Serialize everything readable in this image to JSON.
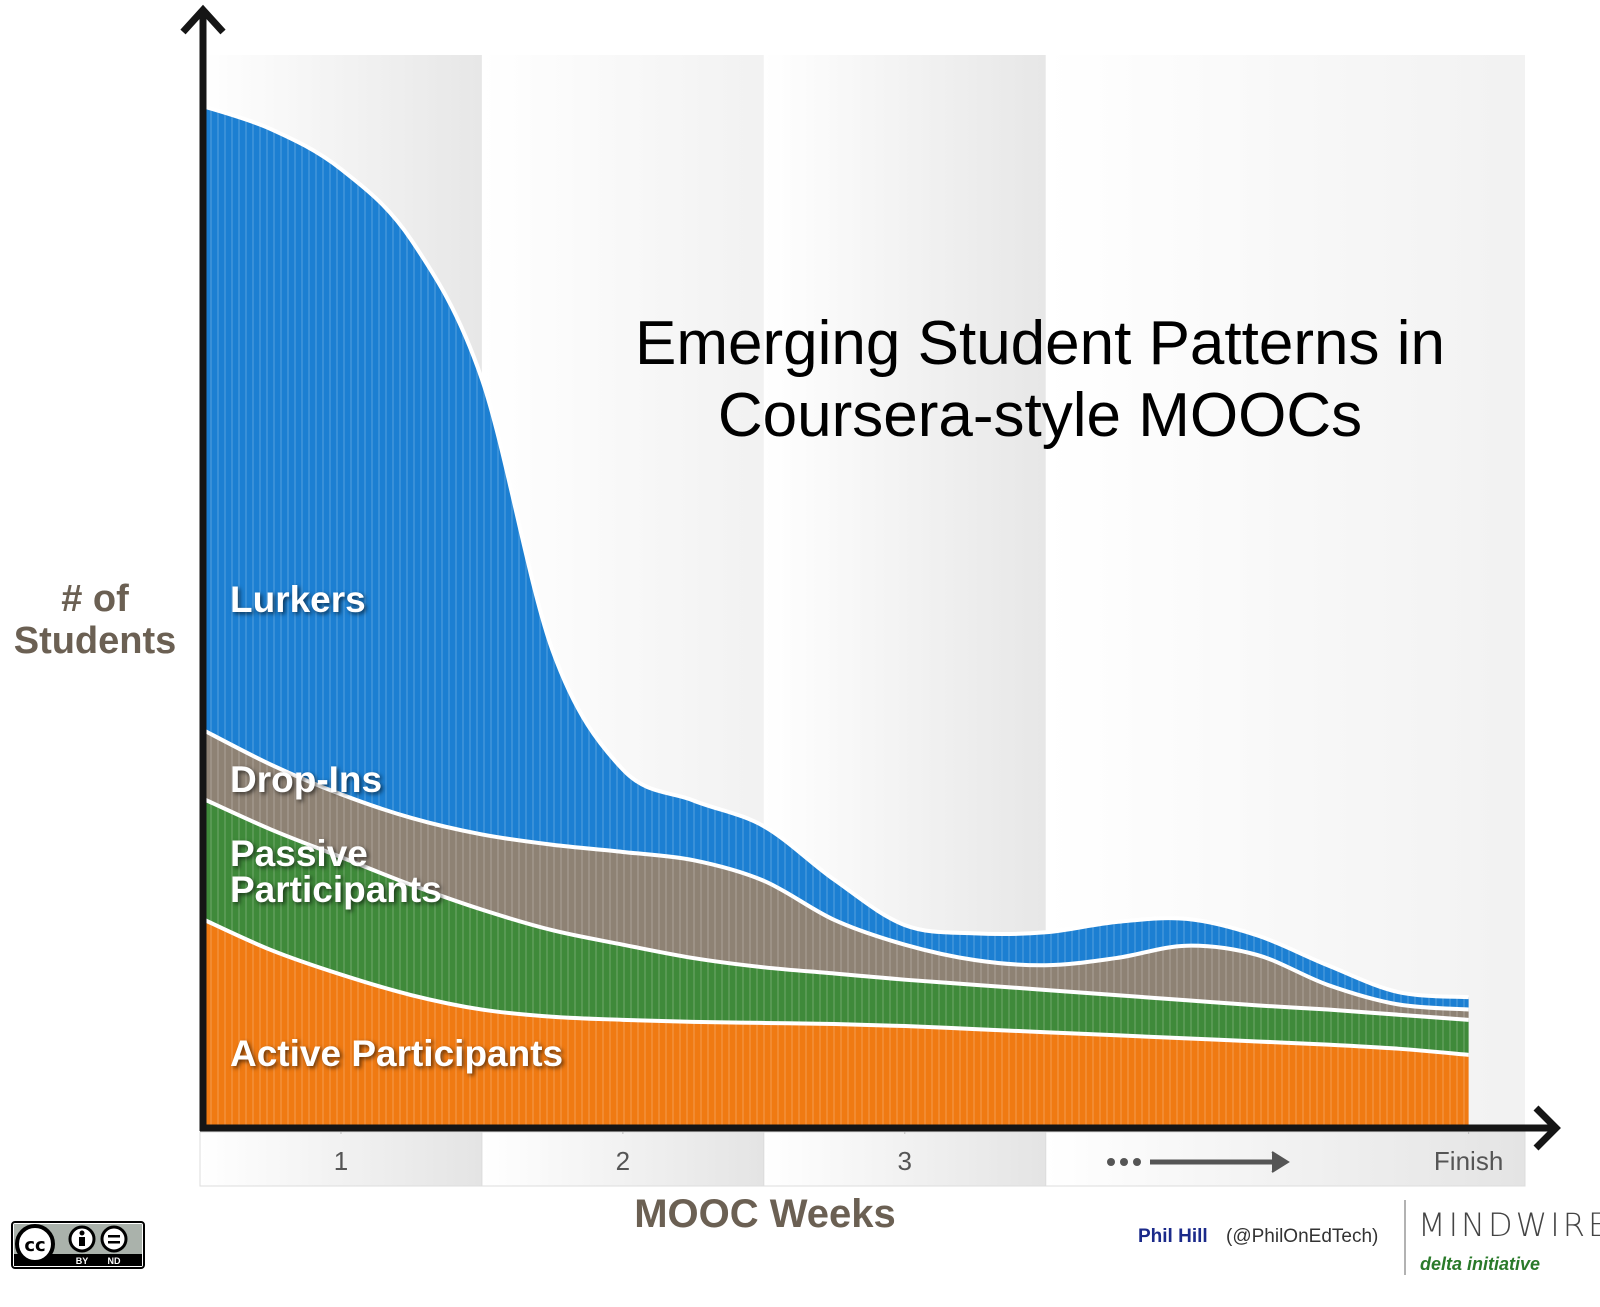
{
  "chart_data": {
    "type": "stacked-area",
    "title": "Emerging Student Patterns in Coursera-style MOOCs",
    "x_label": "MOOC Weeks",
    "y_label": "# of Students",
    "x": [
      0,
      0.25,
      0.5,
      0.75,
      1,
      1.25,
      1.5,
      1.75,
      2,
      2.25,
      2.5,
      2.75,
      3,
      3.25,
      3.5,
      3.75,
      4,
      4.25,
      4.5
    ],
    "xlim": [
      0,
      4.7
    ],
    "xticks": [
      {
        "value": 0.5,
        "label": "1"
      },
      {
        "value": 1.5,
        "label": "2"
      },
      {
        "value": 2.5,
        "label": "3"
      },
      {
        "value": 4.5,
        "label": "Finish"
      }
    ],
    "ylim": [
      0,
      100
    ],
    "series": [
      {
        "name": "Active Participants",
        "color": "#f07a12",
        "values": [
          20.4,
          17.3,
          14.9,
          12.9,
          11.5,
          10.8,
          10.5,
          10.3,
          10.2,
          10.1,
          9.9,
          9.6,
          9.3,
          9.0,
          8.7,
          8.4,
          8.1,
          7.7,
          7.1
        ]
      },
      {
        "name": "Passive Participants",
        "color": "#3f8a3a",
        "values": [
          11.7,
          11.7,
          11.4,
          10.7,
          9.7,
          8.4,
          7.3,
          6.2,
          5.4,
          4.9,
          4.5,
          4.3,
          4.1,
          3.9,
          3.7,
          3.5,
          3.4,
          3.3,
          3.4
        ]
      },
      {
        "name": "Drop-Ins",
        "color": "#8e8274",
        "values": [
          6.7,
          6.3,
          6.1,
          6.5,
          7.3,
          8.3,
          9.0,
          9.5,
          8.4,
          5.2,
          3.4,
          2.4,
          2.4,
          3.6,
          5.3,
          4.9,
          2.4,
          1.0,
          1.0
        ]
      },
      {
        "name": "Lurkers",
        "color": "#1c7fd2",
        "values": [
          60.5,
          61.7,
          60.7,
          56.1,
          44.2,
          18.9,
          8.0,
          5.8,
          5.3,
          3.9,
          1.9,
          2.6,
          3.2,
          3.5,
          2.6,
          1.9,
          1.9,
          1.2,
          1.2
        ]
      }
    ]
  },
  "credits": {
    "author": "Phil Hill",
    "handle": "(@PhilOnEdTech)",
    "brand": "MINDWIRES",
    "brand_sub": "delta initiative",
    "license": [
      "BY",
      "ND"
    ]
  }
}
